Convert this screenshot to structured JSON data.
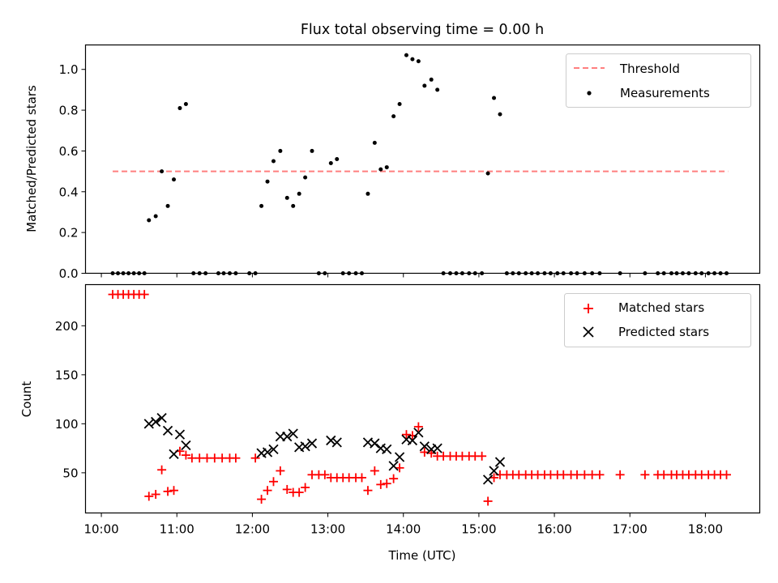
{
  "chart_data": [
    {
      "type": "scatter",
      "title": "Flux total observing time = 0.00 h",
      "xlabel": "",
      "ylabel": "Matched/Predicted stars",
      "xlim": [
        9.79,
        18.72
      ],
      "ylim": [
        0,
        1.12
      ],
      "yticks": [
        0.0,
        0.2,
        0.4,
        0.6,
        0.8,
        1.0
      ],
      "ytick_labels": [
        "0.0",
        "0.2",
        "0.4",
        "0.6",
        "0.8",
        "1.0"
      ],
      "threshold": {
        "name": "Threshold",
        "value": 0.5,
        "x_range": [
          10.15,
          18.3
        ],
        "color": "#ff7f7f"
      },
      "legend": [
        {
          "name": "Threshold",
          "style": "dashed-line",
          "color": "#ff7f7f"
        },
        {
          "name": "Measurements",
          "style": "dot",
          "color": "#000000"
        }
      ],
      "legend_position": "top-right",
      "series": [
        {
          "name": "Measurements",
          "color": "#000000",
          "points": [
            [
              10.15,
              0
            ],
            [
              10.22,
              0
            ],
            [
              10.29,
              0
            ],
            [
              10.36,
              0
            ],
            [
              10.43,
              0
            ],
            [
              10.5,
              0
            ],
            [
              10.57,
              0
            ],
            [
              10.63,
              0.26
            ],
            [
              10.72,
              0.28
            ],
            [
              10.8,
              0.5
            ],
            [
              10.88,
              0.33
            ],
            [
              10.96,
              0.46
            ],
            [
              11.04,
              0.81
            ],
            [
              11.12,
              0.83
            ],
            [
              11.22,
              0
            ],
            [
              11.3,
              0
            ],
            [
              11.38,
              0
            ],
            [
              11.55,
              0
            ],
            [
              11.62,
              0
            ],
            [
              11.7,
              0
            ],
            [
              11.78,
              0
            ],
            [
              11.96,
              0
            ],
            [
              12.04,
              0
            ],
            [
              12.12,
              0.33
            ],
            [
              12.2,
              0.45
            ],
            [
              12.28,
              0.55
            ],
            [
              12.37,
              0.6
            ],
            [
              12.46,
              0.37
            ],
            [
              12.54,
              0.33
            ],
            [
              12.62,
              0.39
            ],
            [
              12.7,
              0.47
            ],
            [
              12.79,
              0.6
            ],
            [
              12.88,
              0
            ],
            [
              12.96,
              0
            ],
            [
              13.04,
              0.54
            ],
            [
              13.12,
              0.56
            ],
            [
              13.2,
              0
            ],
            [
              13.28,
              0
            ],
            [
              13.37,
              0
            ],
            [
              13.45,
              0
            ],
            [
              13.53,
              0.39
            ],
            [
              13.62,
              0.64
            ],
            [
              13.7,
              0.51
            ],
            [
              13.78,
              0.52
            ],
            [
              13.87,
              0.77
            ],
            [
              13.95,
              0.83
            ],
            [
              14.04,
              1.07
            ],
            [
              14.12,
              1.05
            ],
            [
              14.2,
              1.04
            ],
            [
              14.28,
              0.92
            ],
            [
              14.37,
              0.95
            ],
            [
              14.45,
              0.9
            ],
            [
              14.53,
              0
            ],
            [
              14.62,
              0
            ],
            [
              14.7,
              0
            ],
            [
              14.78,
              0
            ],
            [
              14.87,
              0
            ],
            [
              14.95,
              0
            ],
            [
              15.04,
              0
            ],
            [
              15.12,
              0.49
            ],
            [
              15.2,
              0.86
            ],
            [
              15.28,
              0.78
            ],
            [
              15.37,
              0
            ],
            [
              15.45,
              0
            ],
            [
              15.53,
              0
            ],
            [
              15.62,
              0
            ],
            [
              15.7,
              0
            ],
            [
              15.78,
              0
            ],
            [
              15.87,
              0
            ],
            [
              15.95,
              0
            ],
            [
              16.04,
              0
            ],
            [
              16.12,
              0
            ],
            [
              16.22,
              0
            ],
            [
              16.3,
              0
            ],
            [
              16.4,
              0
            ],
            [
              16.5,
              0
            ],
            [
              16.6,
              0
            ],
            [
              16.87,
              0
            ],
            [
              17.2,
              0
            ],
            [
              17.37,
              0
            ],
            [
              17.45,
              0
            ],
            [
              17.55,
              0
            ],
            [
              17.62,
              0
            ],
            [
              17.7,
              0
            ],
            [
              17.78,
              0
            ],
            [
              17.87,
              0
            ],
            [
              17.95,
              0
            ],
            [
              18.04,
              0
            ],
            [
              18.12,
              0
            ],
            [
              18.2,
              0
            ],
            [
              18.28,
              0
            ]
          ]
        }
      ]
    },
    {
      "type": "scatter",
      "title": "",
      "xlabel": "Time (UTC)",
      "ylabel": "Count",
      "xlim": [
        9.79,
        18.72
      ],
      "ylim": [
        9,
        242
      ],
      "yticks": [
        50,
        100,
        150,
        200
      ],
      "ytick_labels": [
        "50",
        "100",
        "150",
        "200"
      ],
      "xticks": [
        10,
        11,
        12,
        13,
        14,
        15,
        16,
        17,
        18
      ],
      "xtick_labels": [
        "10:00",
        "11:00",
        "12:00",
        "13:00",
        "14:00",
        "15:00",
        "16:00",
        "17:00",
        "18:00"
      ],
      "legend": [
        {
          "name": "Matched stars",
          "style": "plus",
          "color": "#ff0000"
        },
        {
          "name": "Predicted stars",
          "style": "x",
          "color": "#000000"
        }
      ],
      "legend_position": "top-right",
      "series": [
        {
          "name": "Matched stars",
          "color": "#ff0000",
          "marker": "+",
          "points": [
            [
              10.15,
              232
            ],
            [
              10.22,
              232
            ],
            [
              10.29,
              232
            ],
            [
              10.36,
              232
            ],
            [
              10.43,
              232
            ],
            [
              10.5,
              232
            ],
            [
              10.57,
              232
            ],
            [
              10.63,
              26
            ],
            [
              10.72,
              28
            ],
            [
              10.8,
              53
            ],
            [
              10.88,
              31
            ],
            [
              10.96,
              32
            ],
            [
              11.04,
              72
            ],
            [
              11.12,
              68
            ],
            [
              11.2,
              65
            ],
            [
              11.3,
              65
            ],
            [
              11.4,
              65
            ],
            [
              11.5,
              65
            ],
            [
              11.6,
              65
            ],
            [
              11.7,
              65
            ],
            [
              11.78,
              65
            ],
            [
              12.04,
              65
            ],
            [
              12.12,
              23
            ],
            [
              12.2,
              32
            ],
            [
              12.28,
              41
            ],
            [
              12.37,
              52
            ],
            [
              12.46,
              33
            ],
            [
              12.54,
              30
            ],
            [
              12.62,
              30
            ],
            [
              12.7,
              35
            ],
            [
              12.79,
              48
            ],
            [
              12.88,
              48
            ],
            [
              12.96,
              48
            ],
            [
              13.04,
              45
            ],
            [
              13.12,
              45
            ],
            [
              13.2,
              45
            ],
            [
              13.28,
              45
            ],
            [
              13.37,
              45
            ],
            [
              13.45,
              45
            ],
            [
              13.53,
              32
            ],
            [
              13.62,
              52
            ],
            [
              13.7,
              38
            ],
            [
              13.78,
              39
            ],
            [
              13.87,
              44
            ],
            [
              13.95,
              55
            ],
            [
              14.04,
              89
            ],
            [
              14.12,
              88
            ],
            [
              14.2,
              97
            ],
            [
              14.28,
              71
            ],
            [
              14.37,
              70
            ],
            [
              14.45,
              67
            ],
            [
              14.53,
              67
            ],
            [
              14.62,
              67
            ],
            [
              14.7,
              67
            ],
            [
              14.78,
              67
            ],
            [
              14.87,
              67
            ],
            [
              14.95,
              67
            ],
            [
              15.04,
              67
            ],
            [
              15.12,
              21
            ],
            [
              15.2,
              45
            ],
            [
              15.28,
              48
            ],
            [
              15.37,
              48
            ],
            [
              15.45,
              48
            ],
            [
              15.53,
              48
            ],
            [
              15.62,
              48
            ],
            [
              15.7,
              48
            ],
            [
              15.78,
              48
            ],
            [
              15.87,
              48
            ],
            [
              15.95,
              48
            ],
            [
              16.04,
              48
            ],
            [
              16.12,
              48
            ],
            [
              16.22,
              48
            ],
            [
              16.3,
              48
            ],
            [
              16.4,
              48
            ],
            [
              16.5,
              48
            ],
            [
              16.6,
              48
            ],
            [
              16.87,
              48
            ],
            [
              17.2,
              48
            ],
            [
              17.37,
              48
            ],
            [
              17.45,
              48
            ],
            [
              17.55,
              48
            ],
            [
              17.62,
              48
            ],
            [
              17.7,
              48
            ],
            [
              17.78,
              48
            ],
            [
              17.87,
              48
            ],
            [
              17.95,
              48
            ],
            [
              18.04,
              48
            ],
            [
              18.12,
              48
            ],
            [
              18.2,
              48
            ],
            [
              18.28,
              48
            ]
          ]
        },
        {
          "name": "Predicted stars",
          "color": "#000000",
          "marker": "x",
          "points": [
            [
              10.63,
              100
            ],
            [
              10.72,
              102
            ],
            [
              10.8,
              106
            ],
            [
              10.88,
              93
            ],
            [
              10.96,
              69
            ],
            [
              11.04,
              89
            ],
            [
              11.12,
              78
            ],
            [
              12.12,
              70
            ],
            [
              12.2,
              71
            ],
            [
              12.28,
              74
            ],
            [
              12.37,
              87
            ],
            [
              12.46,
              87
            ],
            [
              12.54,
              90
            ],
            [
              12.62,
              76
            ],
            [
              12.7,
              77
            ],
            [
              12.79,
              80
            ],
            [
              13.04,
              83
            ],
            [
              13.12,
              81
            ],
            [
              13.53,
              81
            ],
            [
              13.62,
              80
            ],
            [
              13.7,
              75
            ],
            [
              13.78,
              74
            ],
            [
              13.87,
              57
            ],
            [
              13.95,
              66
            ],
            [
              14.04,
              84
            ],
            [
              14.12,
              83
            ],
            [
              14.2,
              91
            ],
            [
              14.28,
              77
            ],
            [
              14.37,
              74
            ],
            [
              14.45,
              75
            ],
            [
              15.12,
              43
            ],
            [
              15.2,
              52
            ],
            [
              15.28,
              61
            ]
          ]
        }
      ]
    }
  ]
}
